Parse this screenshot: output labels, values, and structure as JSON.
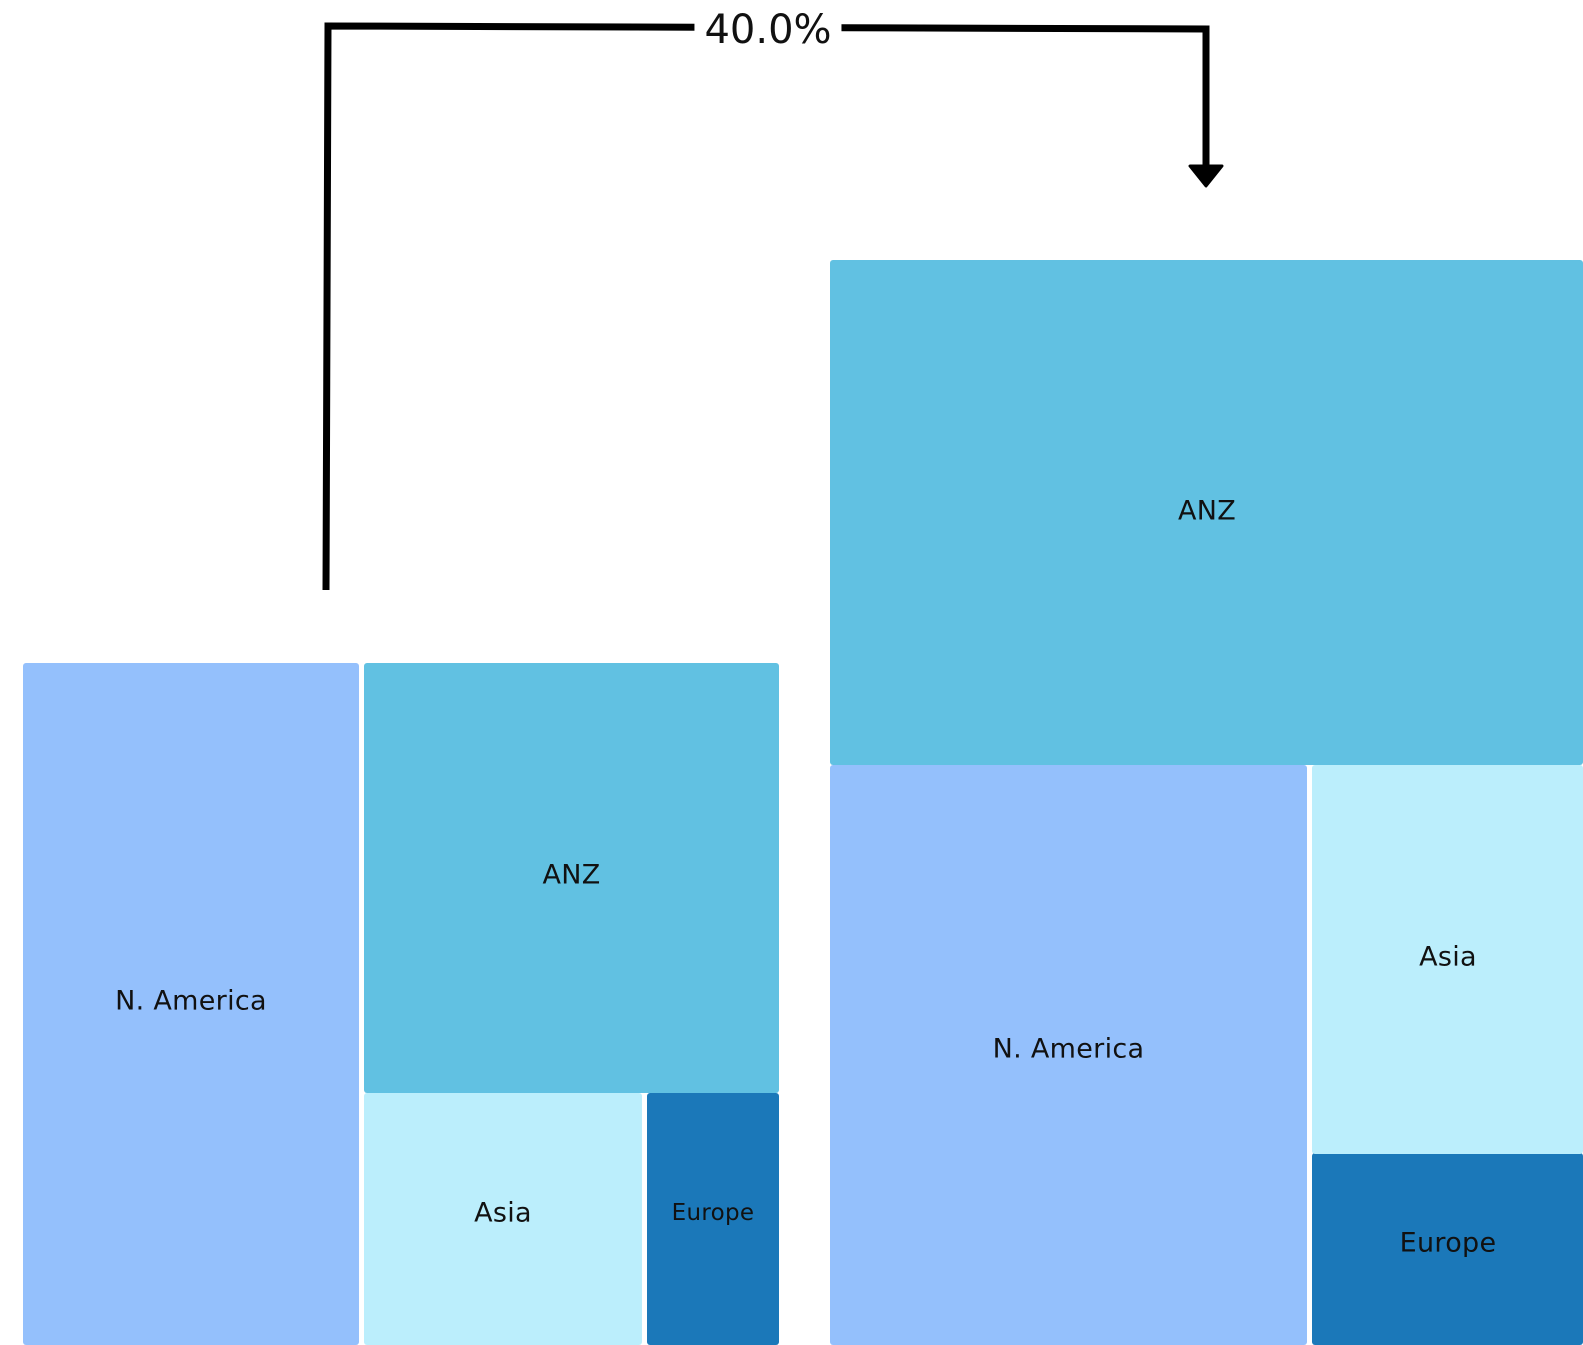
{
  "chart_data": [
    {
      "type": "treemap",
      "tiles": [
        {
          "label": "N. America",
          "value": 34,
          "color": "#94c0fc"
        },
        {
          "label": "ANZ",
          "value": 30,
          "color": "#61c1e2"
        },
        {
          "label": "Asia",
          "value": 20,
          "color": "#bbeefc"
        },
        {
          "label": "Europe",
          "value": 10,
          "color": "#1b78b9"
        }
      ]
    },
    {
      "type": "treemap",
      "tiles": [
        {
          "label": "ANZ",
          "value": 42,
          "color": "#61c1e2"
        },
        {
          "label": "N. America",
          "value": 34,
          "color": "#94c0fc"
        },
        {
          "label": "Asia",
          "value": 20,
          "color": "#bbeefc"
        },
        {
          "label": "Europe",
          "value": 10,
          "color": "#1b78b9"
        }
      ]
    }
  ],
  "annotation": {
    "change_label": "40.0%",
    "from_tile": "ANZ",
    "to_tile": "ANZ"
  }
}
